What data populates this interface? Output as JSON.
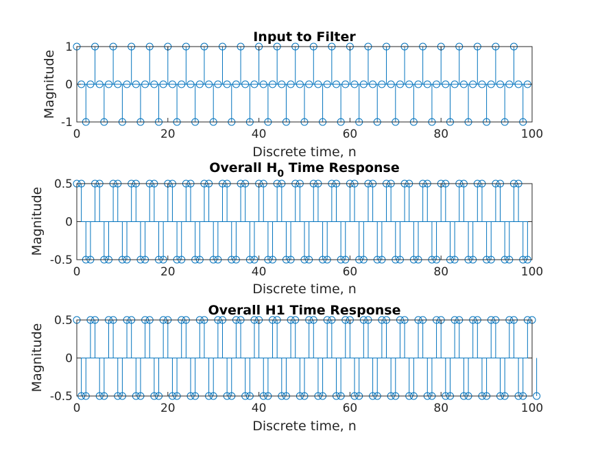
{
  "chart_data": [
    {
      "type": "stem",
      "title": "Input to Filter",
      "xlabel": "Discrete time, n",
      "ylabel": "Magnitude",
      "xlim": [
        0,
        100
      ],
      "ylim": [
        -1,
        1
      ],
      "xticks": [
        "0",
        "20",
        "40",
        "60",
        "80",
        "100"
      ],
      "yticks": [
        "-1",
        "0",
        "1"
      ],
      "x_start": 0,
      "x_end": 99,
      "values": [
        1,
        0,
        -1,
        0,
        1,
        0,
        -1,
        0,
        1,
        0,
        -1,
        0,
        1,
        0,
        -1,
        0,
        1,
        0,
        -1,
        0,
        1,
        0,
        -1,
        0,
        1,
        0,
        -1,
        0,
        1,
        0,
        -1,
        0,
        1,
        0,
        -1,
        0,
        1,
        0,
        -1,
        0,
        1,
        0,
        -1,
        0,
        1,
        0,
        -1,
        0,
        1,
        0,
        -1,
        0,
        1,
        0,
        -1,
        0,
        1,
        0,
        -1,
        0,
        1,
        0,
        -1,
        0,
        1,
        0,
        -1,
        0,
        1,
        0,
        -1,
        0,
        1,
        0,
        -1,
        0,
        1,
        0,
        -1,
        0,
        1,
        0,
        -1,
        0,
        1,
        0,
        -1,
        0,
        1,
        0,
        -1,
        0,
        1,
        0,
        -1,
        0,
        1,
        0,
        -1,
        0
      ]
    },
    {
      "type": "stem",
      "title": "Overall H",
      "title_subscript": "0",
      "title_suffix": " Time Response",
      "xlabel": "Discrete time, n",
      "ylabel": "Magnitude",
      "xlim": [
        0,
        100
      ],
      "ylim": [
        -0.5,
        0.5
      ],
      "xticks": [
        "0",
        "20",
        "40",
        "60",
        "80",
        "100"
      ],
      "yticks": [
        "-0.5",
        "0",
        "0.5"
      ],
      "x_start": 0,
      "x_end": 99,
      "values": [
        0.5,
        0.5,
        -0.5,
        -0.5,
        0.5,
        0.5,
        -0.5,
        -0.5,
        0.5,
        0.5,
        -0.5,
        -0.5,
        0.5,
        0.5,
        -0.5,
        -0.5,
        0.5,
        0.5,
        -0.5,
        -0.5,
        0.5,
        0.5,
        -0.5,
        -0.5,
        0.5,
        0.5,
        -0.5,
        -0.5,
        0.5,
        0.5,
        -0.5,
        -0.5,
        0.5,
        0.5,
        -0.5,
        -0.5,
        0.5,
        0.5,
        -0.5,
        -0.5,
        0.5,
        0.5,
        -0.5,
        -0.5,
        0.5,
        0.5,
        -0.5,
        -0.5,
        0.5,
        0.5,
        -0.5,
        -0.5,
        0.5,
        0.5,
        -0.5,
        -0.5,
        0.5,
        0.5,
        -0.5,
        -0.5,
        0.5,
        0.5,
        -0.5,
        -0.5,
        0.5,
        0.5,
        -0.5,
        -0.5,
        0.5,
        0.5,
        -0.5,
        -0.5,
        0.5,
        0.5,
        -0.5,
        -0.5,
        0.5,
        0.5,
        -0.5,
        -0.5,
        0.5,
        0.5,
        -0.5,
        -0.5,
        0.5,
        0.5,
        -0.5,
        -0.5,
        0.5,
        0.5,
        -0.5,
        -0.5,
        0.5,
        0.5,
        -0.5,
        -0.5,
        0.5,
        0.5,
        -0.5,
        -0.5
      ]
    },
    {
      "type": "stem",
      "title": "Overall H1 Time Response",
      "xlabel": "Discrete time, n",
      "ylabel": "Magnitude",
      "xlim": [
        0,
        100
      ],
      "ylim": [
        -0.5,
        0.5
      ],
      "xticks": [
        "0",
        "20",
        "40",
        "60",
        "80",
        "100"
      ],
      "yticks": [
        "-0.5",
        "0",
        "0.5"
      ],
      "x_start": 0,
      "x_end": 99,
      "values": [
        0.5,
        -0.5,
        -0.5,
        0.5,
        0.5,
        -0.5,
        -0.5,
        0.5,
        0.5,
        -0.5,
        -0.5,
        0.5,
        0.5,
        -0.5,
        -0.5,
        0.5,
        0.5,
        -0.5,
        -0.5,
        0.5,
        0.5,
        -0.5,
        -0.5,
        0.5,
        0.5,
        -0.5,
        -0.5,
        0.5,
        0.5,
        -0.5,
        -0.5,
        0.5,
        0.5,
        -0.5,
        -0.5,
        0.5,
        0.5,
        -0.5,
        -0.5,
        0.5,
        0.5,
        -0.5,
        -0.5,
        0.5,
        0.5,
        -0.5,
        -0.5,
        0.5,
        0.5,
        -0.5,
        -0.5,
        0.5,
        0.5,
        -0.5,
        -0.5,
        0.5,
        0.5,
        -0.5,
        -0.5,
        0.5,
        0.5,
        -0.5,
        -0.5,
        0.5,
        0.5,
        -0.5,
        -0.5,
        0.5,
        0.5,
        -0.5,
        -0.5,
        0.5,
        0.5,
        -0.5,
        -0.5,
        0.5,
        0.5,
        -0.5,
        -0.5,
        0.5,
        0.5,
        -0.5,
        -0.5,
        0.5,
        0.5,
        -0.5,
        -0.5,
        0.5,
        0.5,
        -0.5,
        -0.5,
        0.5,
        0.5,
        -0.5,
        -0.5,
        0.5,
        0.5,
        -0.5,
        -0.5,
        0.5,
        0.5,
        -0.5
      ]
    }
  ],
  "colors": {
    "stem": "#0072bd",
    "axes": "#262626"
  }
}
